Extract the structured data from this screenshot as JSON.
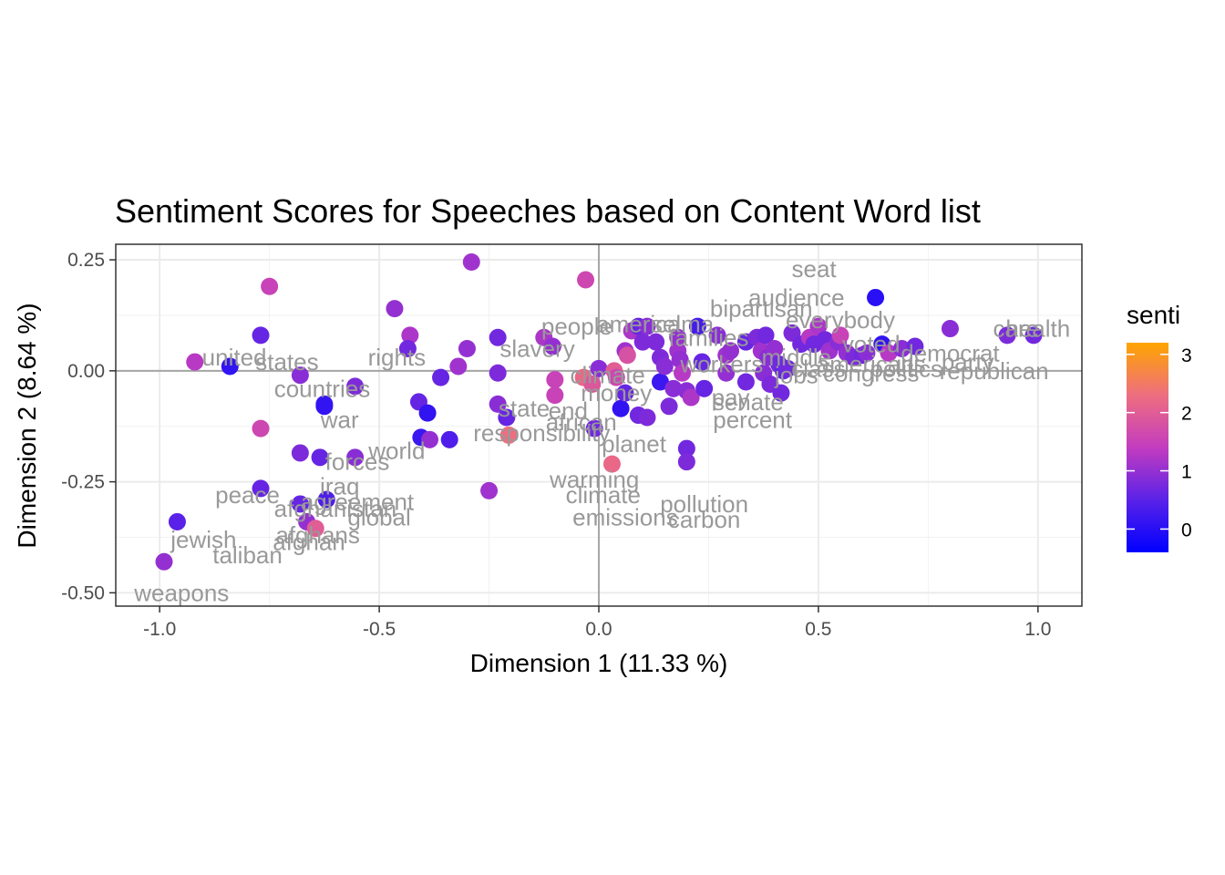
{
  "chart_data": {
    "type": "scatter",
    "title": "Sentiment Scores for Speeches based on Content Word list",
    "xlabel": "Dimension 1 (11.33 %)",
    "ylabel": "Dimension 2 (8.64 %)",
    "xlim": [
      -1.1,
      1.1
    ],
    "ylim": [
      -0.53,
      0.285
    ],
    "x_ticks": [
      -1.0,
      -0.5,
      0.0,
      0.5,
      1.0
    ],
    "x_tick_labels": [
      "-1.0",
      "-0.5",
      "0.0",
      "0.5",
      "1.0"
    ],
    "y_ticks": [
      -0.5,
      -0.25,
      0.0,
      0.25
    ],
    "y_tick_labels": [
      "-0.50",
      "-0.25",
      "0.00",
      "0.25"
    ],
    "grid": true,
    "reference_lines": {
      "x": 0,
      "y": 0
    },
    "legend": {
      "title": "senti",
      "placement": "right",
      "type": "colorbar",
      "range": [
        -0.4,
        3.2
      ],
      "ticks": [
        0,
        1,
        2,
        3
      ],
      "tick_labels": [
        "0",
        "1",
        "2",
        "3"
      ],
      "colors": {
        "low": "#0000ff",
        "mid": "#c33cbf",
        "high": "#ffa500"
      }
    },
    "points": [
      {
        "x": -0.99,
        "y": -0.43,
        "senti": 1.0
      },
      {
        "x": -0.96,
        "y": -0.34,
        "senti": 0.5
      },
      {
        "x": -0.92,
        "y": 0.02,
        "senti": 1.3
      },
      {
        "x": -0.84,
        "y": 0.01,
        "senti": 0.1
      },
      {
        "x": -0.77,
        "y": 0.08,
        "senti": 0.6
      },
      {
        "x": -0.77,
        "y": -0.265,
        "senti": 0.6
      },
      {
        "x": -0.75,
        "y": 0.19,
        "senti": 1.5
      },
      {
        "x": -0.77,
        "y": -0.13,
        "senti": 1.6
      },
      {
        "x": -0.68,
        "y": -0.01,
        "senti": 0.9
      },
      {
        "x": -0.68,
        "y": -0.185,
        "senti": 0.8
      },
      {
        "x": -0.68,
        "y": -0.3,
        "senti": 0.6
      },
      {
        "x": -0.665,
        "y": -0.34,
        "senti": 1.0
      },
      {
        "x": -0.645,
        "y": -0.355,
        "senti": 2.0
      },
      {
        "x": -0.635,
        "y": -0.195,
        "senti": 0.6
      },
      {
        "x": -0.625,
        "y": -0.075,
        "senti": 0.2
      },
      {
        "x": -0.625,
        "y": -0.08,
        "senti": 0.1
      },
      {
        "x": -0.62,
        "y": -0.29,
        "senti": 0.4
      },
      {
        "x": -0.555,
        "y": -0.035,
        "senti": 0.8
      },
      {
        "x": -0.555,
        "y": -0.195,
        "senti": 0.9
      },
      {
        "x": -0.465,
        "y": 0.14,
        "senti": 1.0
      },
      {
        "x": -0.43,
        "y": 0.08,
        "senti": 1.2
      },
      {
        "x": -0.435,
        "y": 0.05,
        "senti": 0.7
      },
      {
        "x": -0.41,
        "y": -0.07,
        "senti": 0.6
      },
      {
        "x": -0.405,
        "y": -0.15,
        "senti": 0.2
      },
      {
        "x": -0.39,
        "y": -0.095,
        "senti": 0.1
      },
      {
        "x": -0.385,
        "y": -0.155,
        "senti": 1.0
      },
      {
        "x": -0.36,
        "y": -0.015,
        "senti": 0.6
      },
      {
        "x": -0.34,
        "y": -0.155,
        "senti": 0.4
      },
      {
        "x": -0.32,
        "y": 0.01,
        "senti": 1.1
      },
      {
        "x": -0.3,
        "y": 0.05,
        "senti": 1.0
      },
      {
        "x": -0.29,
        "y": 0.245,
        "senti": 1.1
      },
      {
        "x": -0.25,
        "y": -0.27,
        "senti": 1.1
      },
      {
        "x": -0.23,
        "y": 0.075,
        "senti": 0.7
      },
      {
        "x": -0.23,
        "y": -0.005,
        "senti": 0.8
      },
      {
        "x": -0.23,
        "y": -0.075,
        "senti": 0.9
      },
      {
        "x": -0.21,
        "y": -0.105,
        "senti": 0.6
      },
      {
        "x": -0.205,
        "y": -0.145,
        "senti": 2.3
      },
      {
        "x": -0.125,
        "y": 0.075,
        "senti": 1.2
      },
      {
        "x": -0.105,
        "y": 0.055,
        "senti": 1.0
      },
      {
        "x": -0.1,
        "y": -0.02,
        "senti": 1.5
      },
      {
        "x": -0.1,
        "y": -0.055,
        "senti": 1.5
      },
      {
        "x": -0.03,
        "y": 0.205,
        "senti": 1.6
      },
      {
        "x": -0.035,
        "y": -0.015,
        "senti": 2.2
      },
      {
        "x": -0.015,
        "y": -0.03,
        "senti": 1.9
      },
      {
        "x": -0.01,
        "y": -0.13,
        "senti": 0.7
      },
      {
        "x": 0.0,
        "y": 0.005,
        "senti": 0.9
      },
      {
        "x": 0.035,
        "y": 0.0,
        "senti": 2.0
      },
      {
        "x": 0.04,
        "y": -0.015,
        "senti": 1.6
      },
      {
        "x": 0.03,
        "y": -0.21,
        "senti": 2.2
      },
      {
        "x": 0.05,
        "y": -0.085,
        "senti": 0.1
      },
      {
        "x": 0.06,
        "y": -0.05,
        "senti": 0.6
      },
      {
        "x": 0.06,
        "y": 0.045,
        "senti": 1.1
      },
      {
        "x": 0.065,
        "y": 0.035,
        "senti": 1.8
      },
      {
        "x": 0.075,
        "y": 0.09,
        "senti": 1.2
      },
      {
        "x": 0.09,
        "y": 0.1,
        "senti": 0.6
      },
      {
        "x": 0.09,
        "y": -0.1,
        "senti": 0.7
      },
      {
        "x": 0.1,
        "y": 0.065,
        "senti": 0.8
      },
      {
        "x": 0.11,
        "y": 0.1,
        "senti": 0.9
      },
      {
        "x": 0.11,
        "y": -0.105,
        "senti": 0.8
      },
      {
        "x": 0.13,
        "y": 0.065,
        "senti": 0.8
      },
      {
        "x": 0.14,
        "y": 0.03,
        "senti": 0.8
      },
      {
        "x": 0.14,
        "y": -0.025,
        "senti": 0.2
      },
      {
        "x": 0.15,
        "y": 0.01,
        "senti": 0.9
      },
      {
        "x": 0.16,
        "y": -0.08,
        "senti": 0.8
      },
      {
        "x": 0.17,
        "y": -0.04,
        "senti": 0.9
      },
      {
        "x": 0.18,
        "y": 0.075,
        "senti": 1.0
      },
      {
        "x": 0.18,
        "y": 0.045,
        "senti": 1.1
      },
      {
        "x": 0.185,
        "y": 0.025,
        "senti": 1.0
      },
      {
        "x": 0.19,
        "y": -0.005,
        "senti": 1.3
      },
      {
        "x": 0.2,
        "y": -0.175,
        "senti": 0.7
      },
      {
        "x": 0.2,
        "y": -0.205,
        "senti": 0.8
      },
      {
        "x": 0.2,
        "y": -0.045,
        "senti": 0.9
      },
      {
        "x": 0.21,
        "y": -0.06,
        "senti": 1.2
      },
      {
        "x": 0.225,
        "y": 0.1,
        "senti": 0.3
      },
      {
        "x": 0.235,
        "y": 0.02,
        "senti": 0.6
      },
      {
        "x": 0.24,
        "y": -0.04,
        "senti": 0.6
      },
      {
        "x": 0.27,
        "y": 0.08,
        "senti": 0.9
      },
      {
        "x": 0.29,
        "y": 0.035,
        "senti": 1.1
      },
      {
        "x": 0.29,
        "y": -0.005,
        "senti": 1.0
      },
      {
        "x": 0.3,
        "y": 0.045,
        "senti": 1.0
      },
      {
        "x": 0.335,
        "y": 0.065,
        "senti": 0.6
      },
      {
        "x": 0.335,
        "y": -0.025,
        "senti": 0.7
      },
      {
        "x": 0.36,
        "y": 0.075,
        "senti": 0.8
      },
      {
        "x": 0.37,
        "y": 0.045,
        "senti": 1.1
      },
      {
        "x": 0.375,
        "y": -0.005,
        "senti": 0.9
      },
      {
        "x": 0.38,
        "y": 0.08,
        "senti": 0.7
      },
      {
        "x": 0.385,
        "y": 0.03,
        "senti": 0.9
      },
      {
        "x": 0.39,
        "y": -0.03,
        "senti": 0.8
      },
      {
        "x": 0.4,
        "y": 0.05,
        "senti": 1.0
      },
      {
        "x": 0.41,
        "y": 0.015,
        "senti": 0.7
      },
      {
        "x": 0.415,
        "y": -0.05,
        "senti": 0.7
      },
      {
        "x": 0.42,
        "y": 0.0,
        "senti": 0.6
      },
      {
        "x": 0.43,
        "y": 0.005,
        "senti": 0.7
      },
      {
        "x": 0.44,
        "y": 0.085,
        "senti": 0.8
      },
      {
        "x": 0.46,
        "y": 0.06,
        "senti": 0.7
      },
      {
        "x": 0.48,
        "y": 0.075,
        "senti": 1.3
      },
      {
        "x": 0.49,
        "y": 0.06,
        "senti": 0.7
      },
      {
        "x": 0.5,
        "y": 0.1,
        "senti": 1.2
      },
      {
        "x": 0.515,
        "y": 0.07,
        "senti": 0.7
      },
      {
        "x": 0.525,
        "y": 0.045,
        "senti": 1.1
      },
      {
        "x": 0.545,
        "y": 0.065,
        "senti": 0.9
      },
      {
        "x": 0.55,
        "y": 0.08,
        "senti": 1.5
      },
      {
        "x": 0.565,
        "y": 0.04,
        "senti": 1.0
      },
      {
        "x": 0.58,
        "y": 0.03,
        "senti": 0.8
      },
      {
        "x": 0.6,
        "y": 0.035,
        "senti": 0.7
      },
      {
        "x": 0.61,
        "y": 0.04,
        "senti": 0.9
      },
      {
        "x": 0.63,
        "y": 0.165,
        "senti": 0.0
      },
      {
        "x": 0.645,
        "y": 0.06,
        "senti": 0.1
      },
      {
        "x": 0.66,
        "y": 0.04,
        "senti": 1.3
      },
      {
        "x": 0.69,
        "y": 0.05,
        "senti": 0.9
      },
      {
        "x": 0.72,
        "y": 0.055,
        "senti": 0.7
      },
      {
        "x": 0.8,
        "y": 0.095,
        "senti": 0.9
      },
      {
        "x": 0.93,
        "y": 0.08,
        "senti": 0.8
      },
      {
        "x": 0.99,
        "y": 0.08,
        "senti": 0.7
      }
    ],
    "word_labels": [
      {
        "text": "seat",
        "x": 0.49,
        "y": 0.23
      },
      {
        "text": "audience",
        "x": 0.45,
        "y": 0.165
      },
      {
        "text": "bipartisan",
        "x": 0.37,
        "y": 0.14
      },
      {
        "text": "everybody",
        "x": 0.55,
        "y": 0.115
      },
      {
        "text": "america",
        "x": 0.09,
        "y": 0.105
      },
      {
        "text": "selma",
        "x": 0.19,
        "y": 0.105
      },
      {
        "text": "people",
        "x": -0.05,
        "y": 0.1
      },
      {
        "text": "slavery",
        "x": -0.14,
        "y": 0.05
      },
      {
        "text": "united",
        "x": -0.83,
        "y": 0.03
      },
      {
        "text": "states",
        "x": -0.71,
        "y": 0.02
      },
      {
        "text": "rights",
        "x": -0.46,
        "y": 0.03
      },
      {
        "text": "countries",
        "x": -0.63,
        "y": -0.04
      },
      {
        "text": "war",
        "x": -0.59,
        "y": -0.11
      },
      {
        "text": "world",
        "x": -0.46,
        "y": -0.18
      },
      {
        "text": "forces",
        "x": -0.55,
        "y": -0.205
      },
      {
        "text": "peace",
        "x": -0.8,
        "y": -0.28
      },
      {
        "text": "iraq",
        "x": -0.59,
        "y": -0.26
      },
      {
        "text": "agreement",
        "x": -0.55,
        "y": -0.295
      },
      {
        "text": "afghanistan",
        "x": -0.6,
        "y": -0.31
      },
      {
        "text": "global",
        "x": -0.5,
        "y": -0.33
      },
      {
        "text": "jewish",
        "x": -0.9,
        "y": -0.38
      },
      {
        "text": "afghans",
        "x": -0.64,
        "y": -0.37
      },
      {
        "text": "afghan",
        "x": -0.66,
        "y": -0.385
      },
      {
        "text": "taliban",
        "x": -0.8,
        "y": -0.415
      },
      {
        "text": "weapons",
        "x": -0.95,
        "y": -0.5
      },
      {
        "text": "state",
        "x": -0.17,
        "y": -0.085
      },
      {
        "text": "end",
        "x": -0.07,
        "y": -0.09
      },
      {
        "text": "african",
        "x": -0.04,
        "y": -0.115
      },
      {
        "text": "responsibility",
        "x": -0.13,
        "y": -0.14
      },
      {
        "text": "planet",
        "x": 0.08,
        "y": -0.165
      },
      {
        "text": "warming",
        "x": -0.01,
        "y": -0.245
      },
      {
        "text": "climate",
        "x": 0.01,
        "y": -0.28
      },
      {
        "text": "pollution",
        "x": 0.24,
        "y": -0.3
      },
      {
        "text": "emissions",
        "x": 0.06,
        "y": -0.33
      },
      {
        "text": "carbon",
        "x": 0.24,
        "y": -0.335
      },
      {
        "text": "percent",
        "x": 0.35,
        "y": -0.11
      },
      {
        "text": "senate",
        "x": 0.34,
        "y": -0.07
      },
      {
        "text": "money",
        "x": 0.04,
        "y": -0.05
      },
      {
        "text": "pay",
        "x": 0.3,
        "y": -0.06
      },
      {
        "text": "climate",
        "x": 0.02,
        "y": -0.01
      },
      {
        "text": "democrat",
        "x": 0.8,
        "y": 0.04
      },
      {
        "text": "republican",
        "x": 0.9,
        "y": 0.0
      },
      {
        "text": "health",
        "x": 1.0,
        "y": 0.095
      },
      {
        "text": "care",
        "x": 0.95,
        "y": 0.095
      },
      {
        "text": "party",
        "x": 0.84,
        "y": 0.02
      },
      {
        "text": "congress",
        "x": 0.62,
        "y": -0.005
      },
      {
        "text": "politics",
        "x": 0.7,
        "y": 0.005
      },
      {
        "text": "voted",
        "x": 0.62,
        "y": 0.06
      },
      {
        "text": "middle",
        "x": 0.45,
        "y": 0.03
      },
      {
        "text": "class",
        "x": 0.5,
        "y": 0.005
      },
      {
        "text": "jobs",
        "x": 0.45,
        "y": -0.01
      },
      {
        "text": "americans",
        "x": 0.62,
        "y": 0.015
      },
      {
        "text": "families",
        "x": 0.25,
        "y": 0.075
      },
      {
        "text": "workers",
        "x": 0.28,
        "y": 0.015
      }
    ]
  }
}
